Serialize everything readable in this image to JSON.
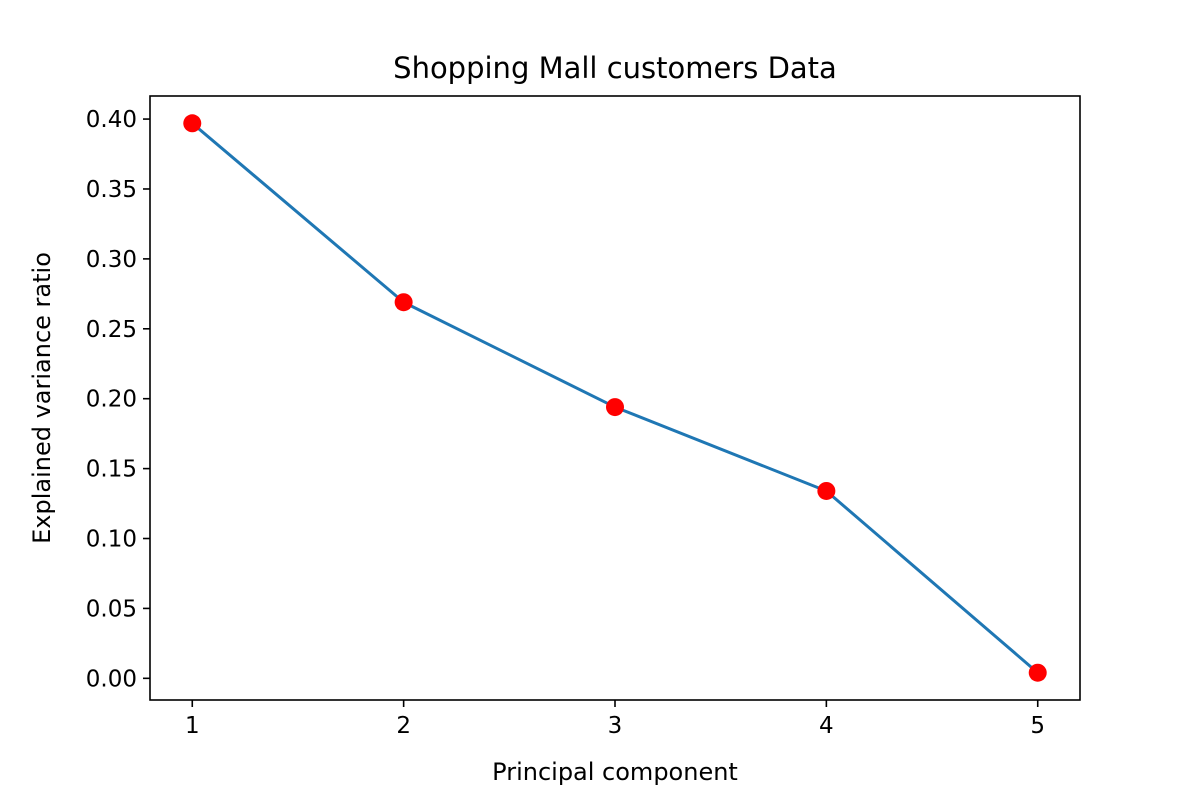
{
  "chart_data": {
    "type": "line",
    "title": "Shopping Mall customers Data",
    "xlabel": "Principal component",
    "ylabel": "Explained variance ratio",
    "x": [
      1,
      2,
      3,
      4,
      5
    ],
    "series": [
      {
        "values": [
          0.397,
          0.269,
          0.194,
          0.134,
          0.004
        ]
      }
    ],
    "xlim": [
      0.8,
      5.2
    ],
    "ylim": [
      -0.0155,
      0.4165
    ],
    "xticks": [
      "1",
      "2",
      "3",
      "4",
      "5"
    ],
    "yticks": [
      "0.00",
      "0.05",
      "0.10",
      "0.15",
      "0.20",
      "0.25",
      "0.30",
      "0.35",
      "0.40"
    ],
    "grid": false,
    "legend": "none",
    "colors": {
      "line": "#1f77b4",
      "marker": "#ff0000",
      "axes": "#000000"
    }
  }
}
